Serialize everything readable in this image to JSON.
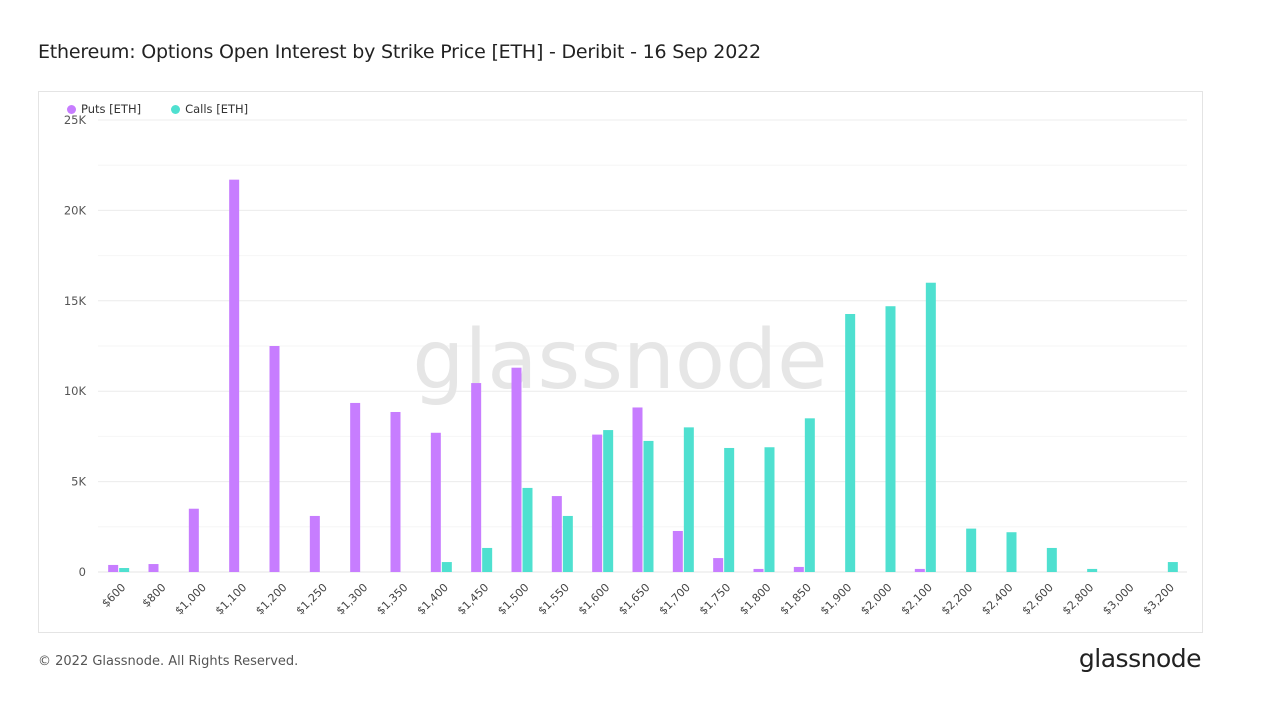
{
  "title": "Ethereum: Options Open Interest by Strike Price [ETH] - Deribit - 16 Sep 2022",
  "footer": "© 2022 Glassnode. All Rights Reserved.",
  "logo": "glassnode",
  "watermark": "glassnode",
  "chart_data": {
    "type": "bar",
    "title": "Ethereum: Options Open Interest by Strike Price [ETH] - Deribit - 16 Sep 2022",
    "xlabel": "",
    "ylabel": "",
    "ylim": [
      0,
      25000
    ],
    "yticks": [
      0,
      5000,
      10000,
      15000,
      20000,
      25000
    ],
    "ytick_labels": [
      "0",
      "5K",
      "10K",
      "15K",
      "20K",
      "25K"
    ],
    "grid": true,
    "legend": "top-left",
    "categories": [
      "$600",
      "$800",
      "$1,000",
      "$1,100",
      "$1,200",
      "$1,250",
      "$1,300",
      "$1,350",
      "$1,400",
      "$1,450",
      "$1,500",
      "$1,550",
      "$1,600",
      "$1,650",
      "$1,700",
      "$1,750",
      "$1,800",
      "$1,850",
      "$1,900",
      "$2,000",
      "$2,100",
      "$2,200",
      "$2,400",
      "$2,600",
      "$2,800",
      "$3,000",
      "$3,200"
    ],
    "series": [
      {
        "name": "Puts [ETH]",
        "color": "#c77dff",
        "values": [
          390,
          440,
          3500,
          21700,
          12500,
          3100,
          9350,
          8850,
          7700,
          10450,
          11300,
          4200,
          7600,
          9100,
          2270,
          770,
          170,
          280,
          0,
          0,
          170,
          0,
          0,
          0,
          0,
          0,
          0
        ]
      },
      {
        "name": "Calls [ETH]",
        "color": "#4fe0d0",
        "values": [
          220,
          0,
          0,
          0,
          0,
          0,
          0,
          0,
          550,
          1330,
          4650,
          3100,
          7850,
          7250,
          8000,
          6860,
          6900,
          8500,
          14270,
          14700,
          16000,
          2400,
          2200,
          1330,
          170,
          0,
          550
        ]
      }
    ]
  }
}
